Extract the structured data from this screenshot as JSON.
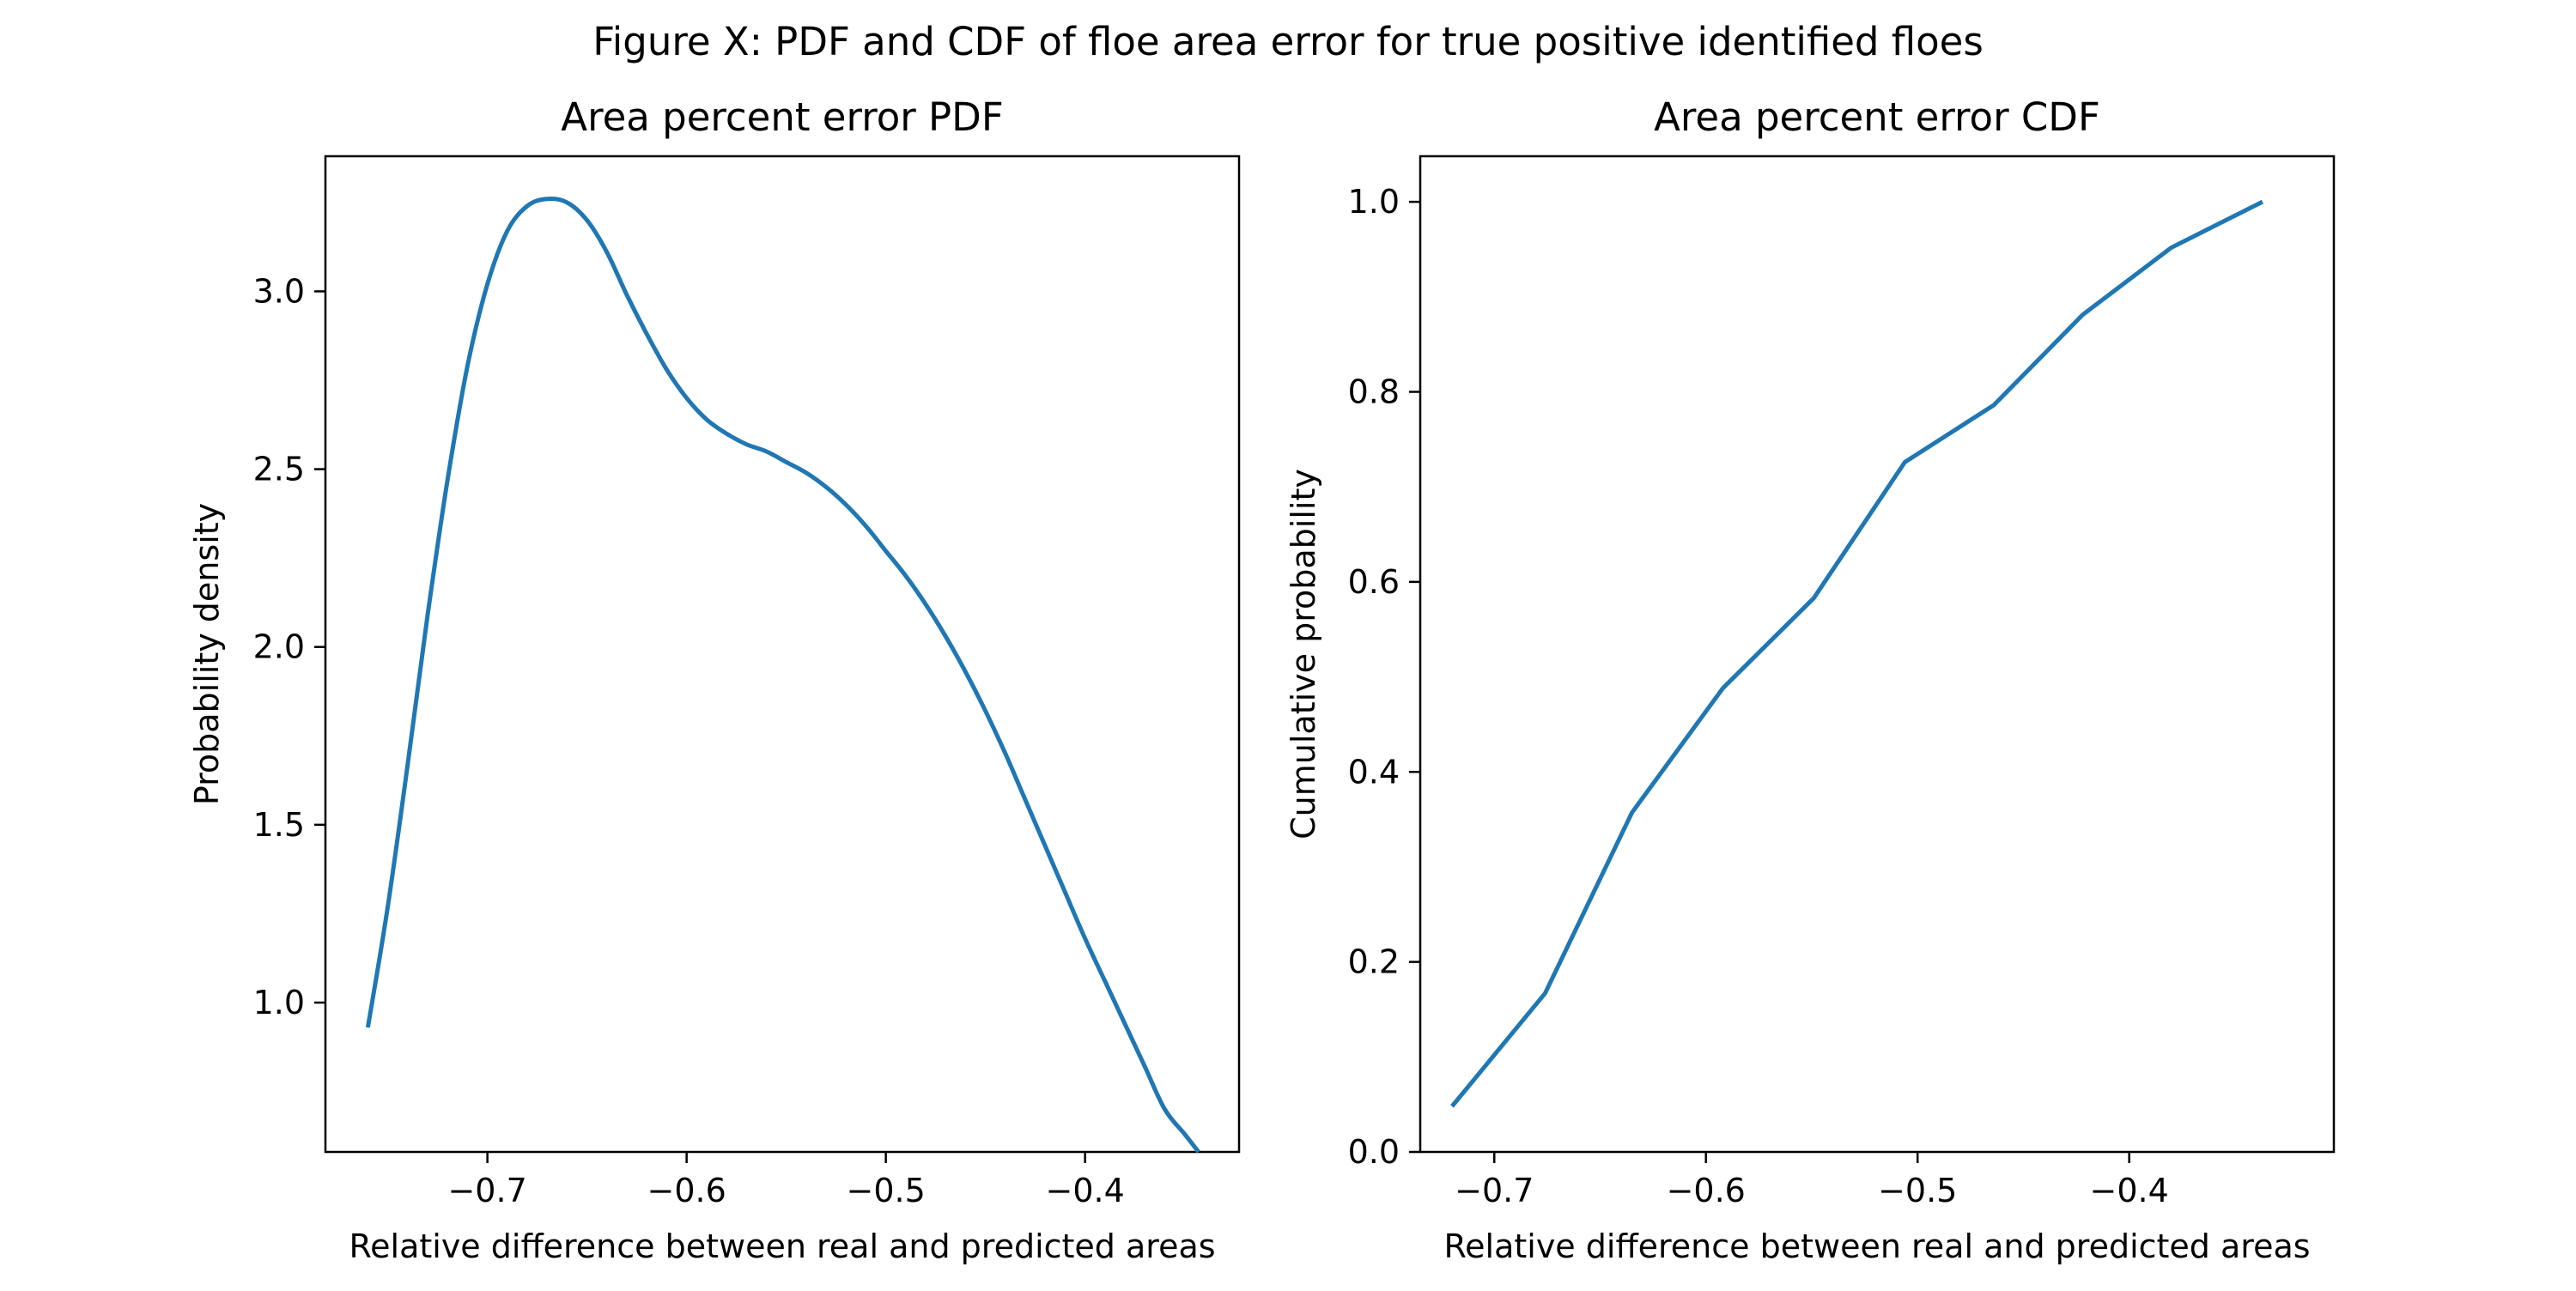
{
  "figure_title": "Figure X: PDF and CDF of floe area error for true positive identified floes",
  "chart_data": [
    {
      "type": "line",
      "title": "Area percent error PDF",
      "xlabel": "Relative difference between real and predicted areas",
      "ylabel": "Probability density",
      "xlim": [
        -0.7813,
        -0.3227
      ],
      "ylim": [
        0.58,
        3.38
      ],
      "xticks": [
        -0.7,
        -0.6,
        -0.5,
        -0.4
      ],
      "xtick_labels": [
        "−0.7",
        "−0.6",
        "−0.5",
        "−0.4"
      ],
      "yticks": [
        1.0,
        1.5,
        2.0,
        2.5,
        3.0
      ],
      "ytick_labels": [
        "1.0",
        "1.5",
        "2.0",
        "2.5",
        "3.0"
      ],
      "grid": false,
      "color": "#1f77b4",
      "x": [
        -0.76,
        -0.75,
        -0.74,
        -0.73,
        -0.72,
        -0.71,
        -0.7,
        -0.69,
        -0.68,
        -0.67,
        -0.66,
        -0.65,
        -0.64,
        -0.63,
        -0.62,
        -0.61,
        -0.6,
        -0.59,
        -0.58,
        -0.57,
        -0.56,
        -0.55,
        -0.54,
        -0.53,
        -0.52,
        -0.51,
        -0.5,
        -0.49,
        -0.48,
        -0.47,
        -0.46,
        -0.45,
        -0.44,
        -0.43,
        -0.42,
        -0.41,
        -0.4,
        -0.39,
        -0.38,
        -0.37,
        -0.36,
        -0.35,
        -0.343
      ],
      "y": [
        0.93,
        1.27,
        1.67,
        2.09,
        2.47,
        2.79,
        3.02,
        3.17,
        3.24,
        3.26,
        3.25,
        3.2,
        3.11,
        2.99,
        2.88,
        2.78,
        2.7,
        2.64,
        2.6,
        2.57,
        2.55,
        2.52,
        2.49,
        2.45,
        2.4,
        2.34,
        2.27,
        2.2,
        2.12,
        2.03,
        1.93,
        1.82,
        1.7,
        1.57,
        1.44,
        1.31,
        1.18,
        1.06,
        0.94,
        0.82,
        0.7,
        0.63,
        0.58
      ]
    },
    {
      "type": "line",
      "title": "Area percent error CDF",
      "xlabel": "Relative difference between real and predicted areas",
      "ylabel": "Cumulative probability",
      "xlim": [
        -0.735,
        -0.3033
      ],
      "ylim": [
        0.0,
        1.048
      ],
      "xticks": [
        -0.7,
        -0.6,
        -0.5,
        -0.4
      ],
      "xtick_labels": [
        "−0.7",
        "−0.6",
        "−0.5",
        "−0.4"
      ],
      "yticks": [
        0.0,
        0.2,
        0.4,
        0.6,
        0.8,
        1.0
      ],
      "ytick_labels": [
        "0.0",
        "0.2",
        "0.4",
        "0.6",
        "0.8",
        "1.0"
      ],
      "grid": false,
      "color": "#1f77b4",
      "x": [
        -0.72,
        -0.676,
        -0.635,
        -0.592,
        -0.549,
        -0.506,
        -0.464,
        -0.422,
        -0.38,
        -0.337
      ],
      "y": [
        0.048,
        0.167,
        0.357,
        0.488,
        0.583,
        0.726,
        0.786,
        0.881,
        0.952,
        1.0
      ]
    }
  ]
}
